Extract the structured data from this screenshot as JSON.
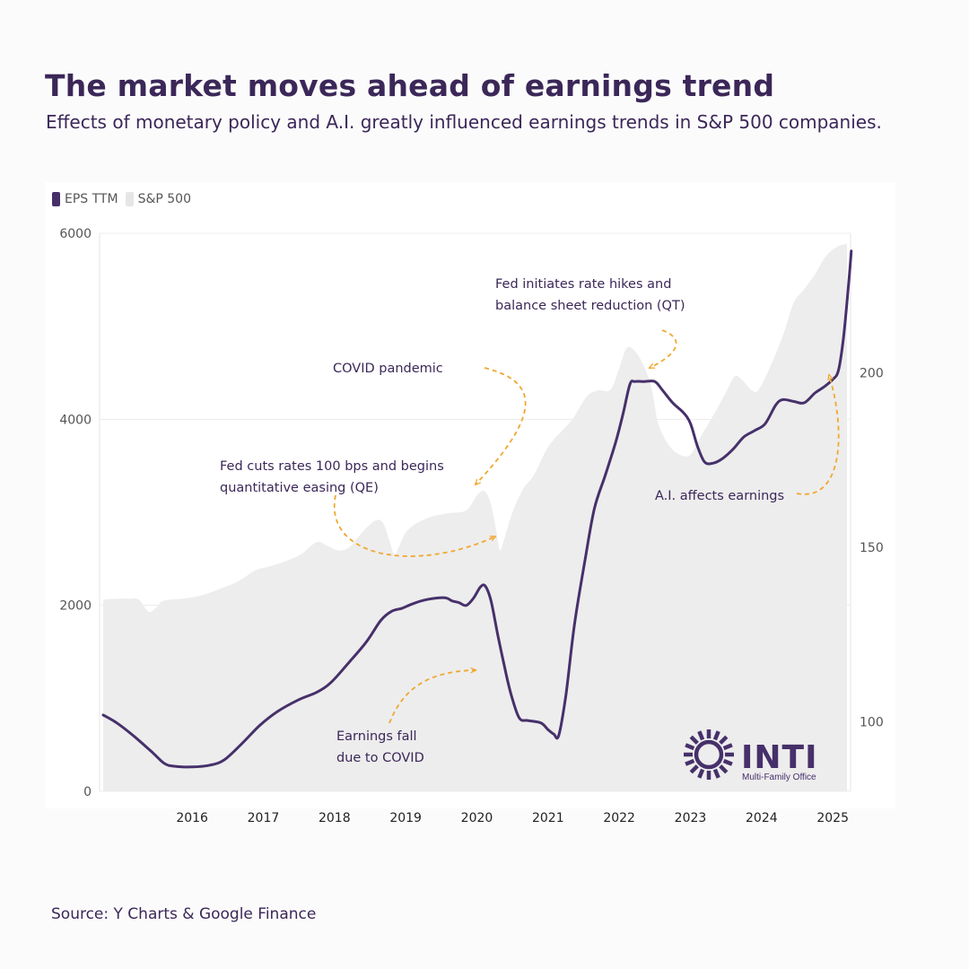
{
  "title": "The market moves ahead of earnings trend",
  "subtitle": "Effects of monetary policy and A.I. greatly influenced earnings trends in S&P 500 companies.",
  "source": "Source: Y Charts & Google Finance",
  "logo": {
    "name": "INTI",
    "tagline": "Multi-Family Office"
  },
  "colors": {
    "eps": "#46306a",
    "sp500": "#ededed",
    "arrow": "#f0a830",
    "text": "#3b2758"
  },
  "chart_data": {
    "type": "line",
    "legend": [
      {
        "name": "EPS TTM",
        "color": "#46306a"
      },
      {
        "name": "S&P 500",
        "color": "#e6e6e6"
      }
    ],
    "legend_position": "top-left",
    "x_ticks": [
      {
        "label": "2016",
        "x": 2016.0
      },
      {
        "label": "2017",
        "x": 2017.0
      },
      {
        "label": "2018",
        "x": 2018.0
      },
      {
        "label": "2019",
        "x": 2019.0
      },
      {
        "label": "2020",
        "x": 2020.0
      },
      {
        "label": "2021",
        "x": 2021.0
      },
      {
        "label": "2022",
        "x": 2022.0
      },
      {
        "label": "2023",
        "x": 2023.0
      },
      {
        "label": "2024",
        "x": 2024.0
      },
      {
        "label": "2025",
        "x": 2025.0
      }
    ],
    "x_range": [
      2014.7,
      2025.25
    ],
    "y_left": {
      "ticks": [
        0,
        2000,
        4000,
        6000
      ],
      "range": [
        0,
        6000
      ]
    },
    "y_right": {
      "ticks": [
        100,
        150,
        200
      ],
      "range": [
        80,
        240
      ]
    },
    "grid": true,
    "series": [
      {
        "name": "S&P 500",
        "type": "area",
        "axis": "left",
        "points": [
          [
            2014.75,
            2060
          ],
          [
            2014.92,
            2070
          ],
          [
            2015.1,
            2070
          ],
          [
            2015.25,
            2060
          ],
          [
            2015.39,
            1930
          ],
          [
            2015.5,
            1980
          ],
          [
            2015.6,
            2050
          ],
          [
            2015.85,
            2070
          ],
          [
            2016.1,
            2100
          ],
          [
            2016.4,
            2180
          ],
          [
            2016.65,
            2260
          ],
          [
            2016.9,
            2380
          ],
          [
            2017.1,
            2420
          ],
          [
            2017.4,
            2500
          ],
          [
            2017.55,
            2560
          ],
          [
            2017.75,
            2680
          ],
          [
            2017.9,
            2640
          ],
          [
            2018.05,
            2590
          ],
          [
            2018.2,
            2620
          ],
          [
            2018.35,
            2750
          ],
          [
            2018.5,
            2870
          ],
          [
            2018.62,
            2920
          ],
          [
            2018.7,
            2860
          ],
          [
            2018.77,
            2700
          ],
          [
            2018.84,
            2550
          ],
          [
            2018.9,
            2620
          ],
          [
            2019.0,
            2780
          ],
          [
            2019.15,
            2880
          ],
          [
            2019.35,
            2950
          ],
          [
            2019.6,
            2990
          ],
          [
            2019.85,
            3020
          ],
          [
            2020.0,
            3180
          ],
          [
            2020.1,
            3230
          ],
          [
            2020.18,
            3130
          ],
          [
            2020.25,
            2900
          ],
          [
            2020.32,
            2600
          ],
          [
            2020.38,
            2700
          ],
          [
            2020.5,
            3000
          ],
          [
            2020.65,
            3250
          ],
          [
            2020.8,
            3400
          ],
          [
            2021.0,
            3700
          ],
          [
            2021.2,
            3880
          ],
          [
            2021.35,
            4010
          ],
          [
            2021.55,
            4250
          ],
          [
            2021.7,
            4310
          ],
          [
            2021.88,
            4320
          ],
          [
            2022.0,
            4550
          ],
          [
            2022.1,
            4760
          ],
          [
            2022.2,
            4750
          ],
          [
            2022.33,
            4600
          ],
          [
            2022.45,
            4350
          ],
          [
            2022.55,
            3950
          ],
          [
            2022.7,
            3720
          ],
          [
            2022.85,
            3620
          ],
          [
            2023.0,
            3620
          ],
          [
            2023.15,
            3820
          ],
          [
            2023.35,
            4080
          ],
          [
            2023.5,
            4290
          ],
          [
            2023.62,
            4460
          ],
          [
            2023.72,
            4430
          ],
          [
            2023.85,
            4320
          ],
          [
            2023.95,
            4310
          ],
          [
            2024.1,
            4530
          ],
          [
            2024.3,
            4900
          ],
          [
            2024.45,
            5250
          ],
          [
            2024.6,
            5400
          ],
          [
            2024.75,
            5560
          ],
          [
            2024.9,
            5750
          ],
          [
            2025.05,
            5850
          ],
          [
            2025.2,
            5890
          ]
        ]
      },
      {
        "name": "EPS TTM",
        "type": "line",
        "axis": "right",
        "points": [
          [
            2014.75,
            101.9
          ],
          [
            2014.95,
            99.5
          ],
          [
            2015.2,
            95.5
          ],
          [
            2015.45,
            91.0
          ],
          [
            2015.61,
            88.0
          ],
          [
            2015.75,
            87.2
          ],
          [
            2016.0,
            87.0
          ],
          [
            2016.25,
            87.5
          ],
          [
            2016.45,
            89.0
          ],
          [
            2016.7,
            93.7
          ],
          [
            2016.95,
            98.9
          ],
          [
            2017.2,
            102.9
          ],
          [
            2017.5,
            106.3
          ],
          [
            2017.75,
            108.4
          ],
          [
            2017.95,
            111.2
          ],
          [
            2018.2,
            116.9
          ],
          [
            2018.45,
            122.9
          ],
          [
            2018.65,
            129.0
          ],
          [
            2018.8,
            131.6
          ],
          [
            2018.95,
            132.5
          ],
          [
            2019.1,
            133.8
          ],
          [
            2019.3,
            135.0
          ],
          [
            2019.55,
            135.5
          ],
          [
            2019.65,
            134.6
          ],
          [
            2019.75,
            134.1
          ],
          [
            2019.85,
            133.3
          ],
          [
            2019.95,
            135.3
          ],
          [
            2020.05,
            138.6
          ],
          [
            2020.12,
            138.8
          ],
          [
            2020.2,
            134.5
          ],
          [
            2020.3,
            124.2
          ],
          [
            2020.42,
            112.8
          ],
          [
            2020.5,
            106.4
          ],
          [
            2020.6,
            100.9
          ],
          [
            2020.72,
            100.3
          ],
          [
            2020.9,
            99.6
          ],
          [
            2021.0,
            97.7
          ],
          [
            2021.08,
            96.4
          ],
          [
            2021.15,
            96.0
          ],
          [
            2021.25,
            107.5
          ],
          [
            2021.37,
            127.7
          ],
          [
            2021.52,
            146.4
          ],
          [
            2021.65,
            161.0
          ],
          [
            2021.8,
            170.4
          ],
          [
            2021.95,
            180.1
          ],
          [
            2022.05,
            187.9
          ],
          [
            2022.15,
            196.7
          ],
          [
            2022.22,
            197.5
          ],
          [
            2022.35,
            197.5
          ],
          [
            2022.5,
            197.5
          ],
          [
            2022.6,
            195.2
          ],
          [
            2022.75,
            191.4
          ],
          [
            2022.9,
            188.6
          ],
          [
            2023.0,
            185.5
          ],
          [
            2023.1,
            178.9
          ],
          [
            2023.2,
            174.4
          ],
          [
            2023.32,
            174.1
          ],
          [
            2023.45,
            175.4
          ],
          [
            2023.6,
            178.1
          ],
          [
            2023.75,
            181.6
          ],
          [
            2023.9,
            183.4
          ],
          [
            2024.05,
            185.4
          ],
          [
            2024.2,
            190.8
          ],
          [
            2024.3,
            192.3
          ],
          [
            2024.45,
            191.8
          ],
          [
            2024.6,
            191.4
          ],
          [
            2024.75,
            194.2
          ],
          [
            2024.88,
            196.0
          ],
          [
            2025.0,
            198.1
          ],
          [
            2025.08,
            200.7
          ],
          [
            2025.15,
            210.0
          ],
          [
            2025.22,
            224.9
          ],
          [
            2025.26,
            234.9
          ]
        ]
      }
    ],
    "annotations": [
      {
        "lines": [
          "Fed initiates rate hikes and",
          "balance sheet reduction (QT)"
        ]
      },
      {
        "lines": [
          "COVID pandemic"
        ]
      },
      {
        "lines": [
          "Fed cuts rates 100 bps and begins",
          "quantitative easing (QE)"
        ]
      },
      {
        "lines": [
          "A.I. affects earnings"
        ]
      },
      {
        "lines": [
          "Earnings fall",
          "due to COVID"
        ]
      }
    ]
  }
}
